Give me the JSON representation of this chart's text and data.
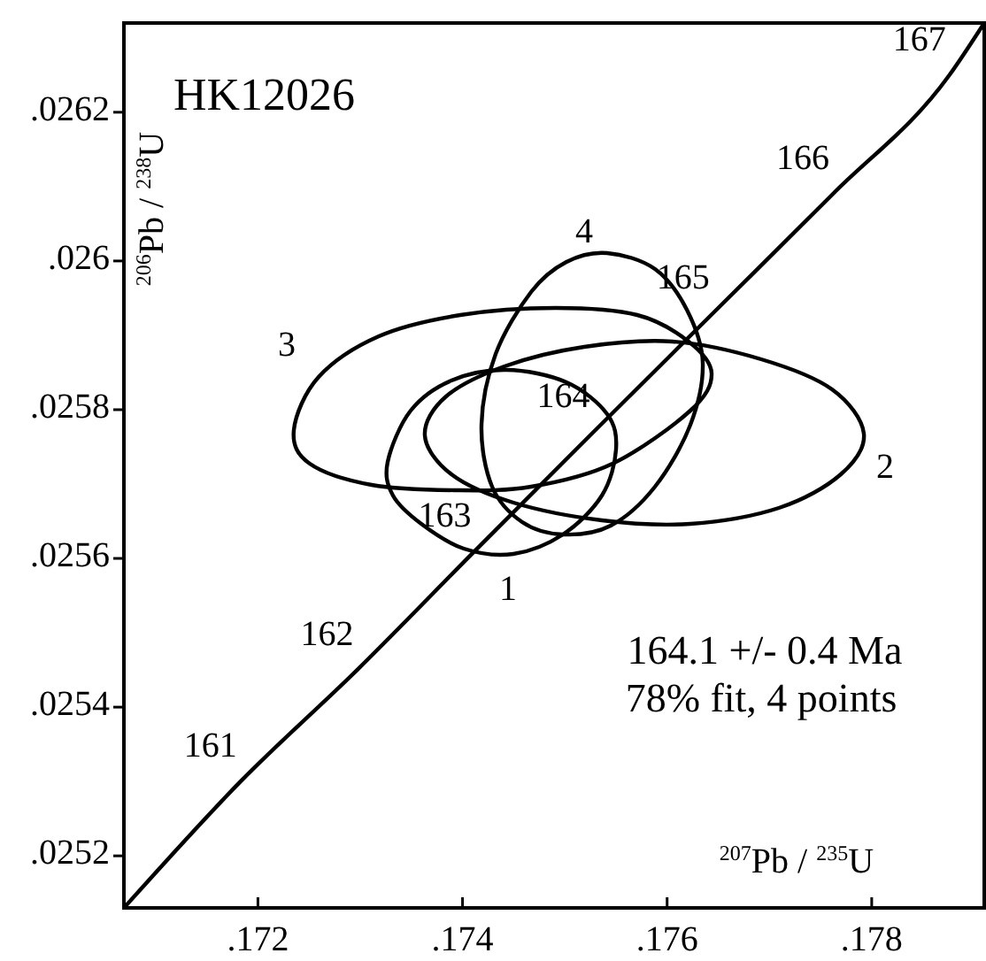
{
  "chart_data": {
    "type": "line",
    "title": "HK12026",
    "xlabel": "$^{207}$Pb / $^{235}$U",
    "ylabel": "$^{206}$Pb / $^{238}$U",
    "xlim": [
      0.17069,
      0.1791
    ],
    "ylim": [
      0.02513,
      0.02632
    ],
    "xticks": [
      {
        "value": 0.172,
        "label": ".172"
      },
      {
        "value": 0.174,
        "label": ".174"
      },
      {
        "value": 0.176,
        "label": ".176"
      },
      {
        "value": 0.178,
        "label": ".178"
      }
    ],
    "yticks": [
      {
        "value": 0.0252,
        "label": ".0252"
      },
      {
        "value": 0.0254,
        "label": ".0254"
      },
      {
        "value": 0.0256,
        "label": ".0256"
      },
      {
        "value": 0.0258,
        "label": ".0258"
      },
      {
        "value": 0.026,
        "label": ".026"
      },
      {
        "value": 0.0262,
        "label": ".0262"
      }
    ],
    "grid": false,
    "marker": "none",
    "line_style": "solid",
    "series": [
      {
        "color": "#000000",
        "x": [
          0.17069,
          0.17183,
          0.17297,
          0.17412,
          0.17528,
          0.17645,
          0.17762,
          0.17876,
          0.1791
        ],
        "values": [
          0.02513,
          0.0253,
          0.02545,
          0.02561,
          0.02577,
          0.02593,
          0.02609,
          0.02625,
          0.02632
        ]
      }
    ],
    "annotations": [
      {
        "text": "161",
        "x": 0.17183,
        "y": 0.0253
      },
      {
        "text": "162",
        "x": 0.17297,
        "y": 0.02545
      },
      {
        "text": "163",
        "x": 0.17412,
        "y": 0.02561
      },
      {
        "text": "164",
        "x": 0.17528,
        "y": 0.02577
      },
      {
        "text": "165",
        "x": 0.17645,
        "y": 0.02593
      },
      {
        "text": "166",
        "x": 0.17762,
        "y": 0.02609
      },
      {
        "text": "167",
        "x": 0.17876,
        "y": 0.02625
      },
      "1",
      "2",
      "3",
      "4",
      "164.1 +/- 0.4 Ma",
      "78% fit, 4 points"
    ]
  }
}
